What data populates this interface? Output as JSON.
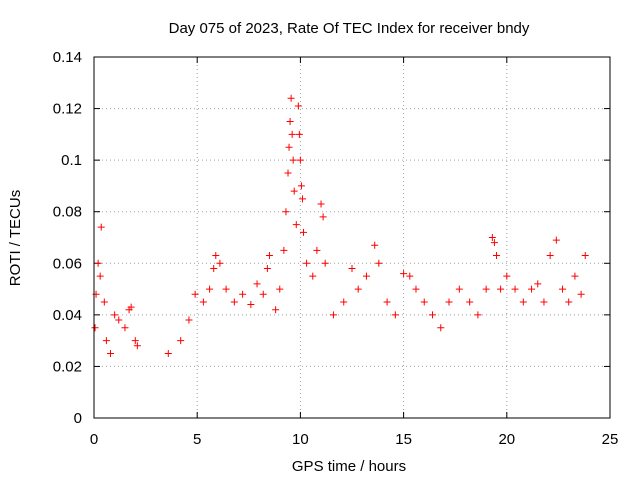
{
  "chart_data": {
    "type": "scatter",
    "title": "Day 075 of 2023, Rate Of TEC Index for receiver bndy",
    "xlabel": "GPS time / hours",
    "ylabel": "ROTI / TECUs",
    "xlim": [
      0,
      25
    ],
    "ylim": [
      0,
      0.14
    ],
    "xticks": [
      0,
      5,
      10,
      15,
      20,
      25
    ],
    "yticks": [
      0,
      0.02,
      0.04,
      0.06,
      0.08,
      0.1,
      0.12,
      0.14
    ],
    "grid": true,
    "marker": "plus",
    "color": "#ff0000",
    "series": [
      {
        "points": [
          [
            0.05,
            0.035
          ],
          [
            0.1,
            0.048
          ],
          [
            0.2,
            0.06
          ],
          [
            0.3,
            0.055
          ],
          [
            0.35,
            0.074
          ],
          [
            0.5,
            0.045
          ],
          [
            0.6,
            0.03
          ],
          [
            0.8,
            0.025
          ],
          [
            1.0,
            0.04
          ],
          [
            1.2,
            0.038
          ],
          [
            1.5,
            0.035
          ],
          [
            1.7,
            0.042
          ],
          [
            1.8,
            0.043
          ],
          [
            2.0,
            0.03
          ],
          [
            2.1,
            0.028
          ],
          [
            3.6,
            0.025
          ],
          [
            4.2,
            0.03
          ],
          [
            4.6,
            0.038
          ],
          [
            4.9,
            0.048
          ],
          [
            5.3,
            0.045
          ],
          [
            5.6,
            0.05
          ],
          [
            5.8,
            0.058
          ],
          [
            5.9,
            0.063
          ],
          [
            6.1,
            0.06
          ],
          [
            6.4,
            0.05
          ],
          [
            6.8,
            0.045
          ],
          [
            7.2,
            0.048
          ],
          [
            7.6,
            0.044
          ],
          [
            7.9,
            0.052
          ],
          [
            8.2,
            0.048
          ],
          [
            8.4,
            0.058
          ],
          [
            8.5,
            0.063
          ],
          [
            8.8,
            0.042
          ],
          [
            9.0,
            0.05
          ],
          [
            9.2,
            0.065
          ],
          [
            9.3,
            0.08
          ],
          [
            9.4,
            0.095
          ],
          [
            9.45,
            0.105
          ],
          [
            9.5,
            0.115
          ],
          [
            9.55,
            0.124
          ],
          [
            9.6,
            0.11
          ],
          [
            9.65,
            0.1
          ],
          [
            9.7,
            0.088
          ],
          [
            9.8,
            0.075
          ],
          [
            9.9,
            0.121
          ],
          [
            9.95,
            0.11
          ],
          [
            10.0,
            0.1
          ],
          [
            10.05,
            0.09
          ],
          [
            10.1,
            0.085
          ],
          [
            10.15,
            0.072
          ],
          [
            10.3,
            0.06
          ],
          [
            10.6,
            0.055
          ],
          [
            10.8,
            0.065
          ],
          [
            11.0,
            0.083
          ],
          [
            11.1,
            0.078
          ],
          [
            11.2,
            0.06
          ],
          [
            11.6,
            0.04
          ],
          [
            12.1,
            0.045
          ],
          [
            12.5,
            0.058
          ],
          [
            12.8,
            0.05
          ],
          [
            13.2,
            0.055
          ],
          [
            13.6,
            0.067
          ],
          [
            13.8,
            0.06
          ],
          [
            14.2,
            0.045
          ],
          [
            14.6,
            0.04
          ],
          [
            15.0,
            0.056
          ],
          [
            15.3,
            0.055
          ],
          [
            15.6,
            0.05
          ],
          [
            16.0,
            0.045
          ],
          [
            16.4,
            0.04
          ],
          [
            16.8,
            0.035
          ],
          [
            17.2,
            0.045
          ],
          [
            17.7,
            0.05
          ],
          [
            18.2,
            0.045
          ],
          [
            18.6,
            0.04
          ],
          [
            19.0,
            0.05
          ],
          [
            19.3,
            0.07
          ],
          [
            19.4,
            0.068
          ],
          [
            19.5,
            0.063
          ],
          [
            19.7,
            0.05
          ],
          [
            20.0,
            0.055
          ],
          [
            20.4,
            0.05
          ],
          [
            20.8,
            0.045
          ],
          [
            21.2,
            0.05
          ],
          [
            21.5,
            0.052
          ],
          [
            21.8,
            0.045
          ],
          [
            22.1,
            0.063
          ],
          [
            22.4,
            0.069
          ],
          [
            22.7,
            0.05
          ],
          [
            23.0,
            0.045
          ],
          [
            23.3,
            0.055
          ],
          [
            23.6,
            0.048
          ],
          [
            23.8,
            0.063
          ]
        ]
      }
    ]
  }
}
